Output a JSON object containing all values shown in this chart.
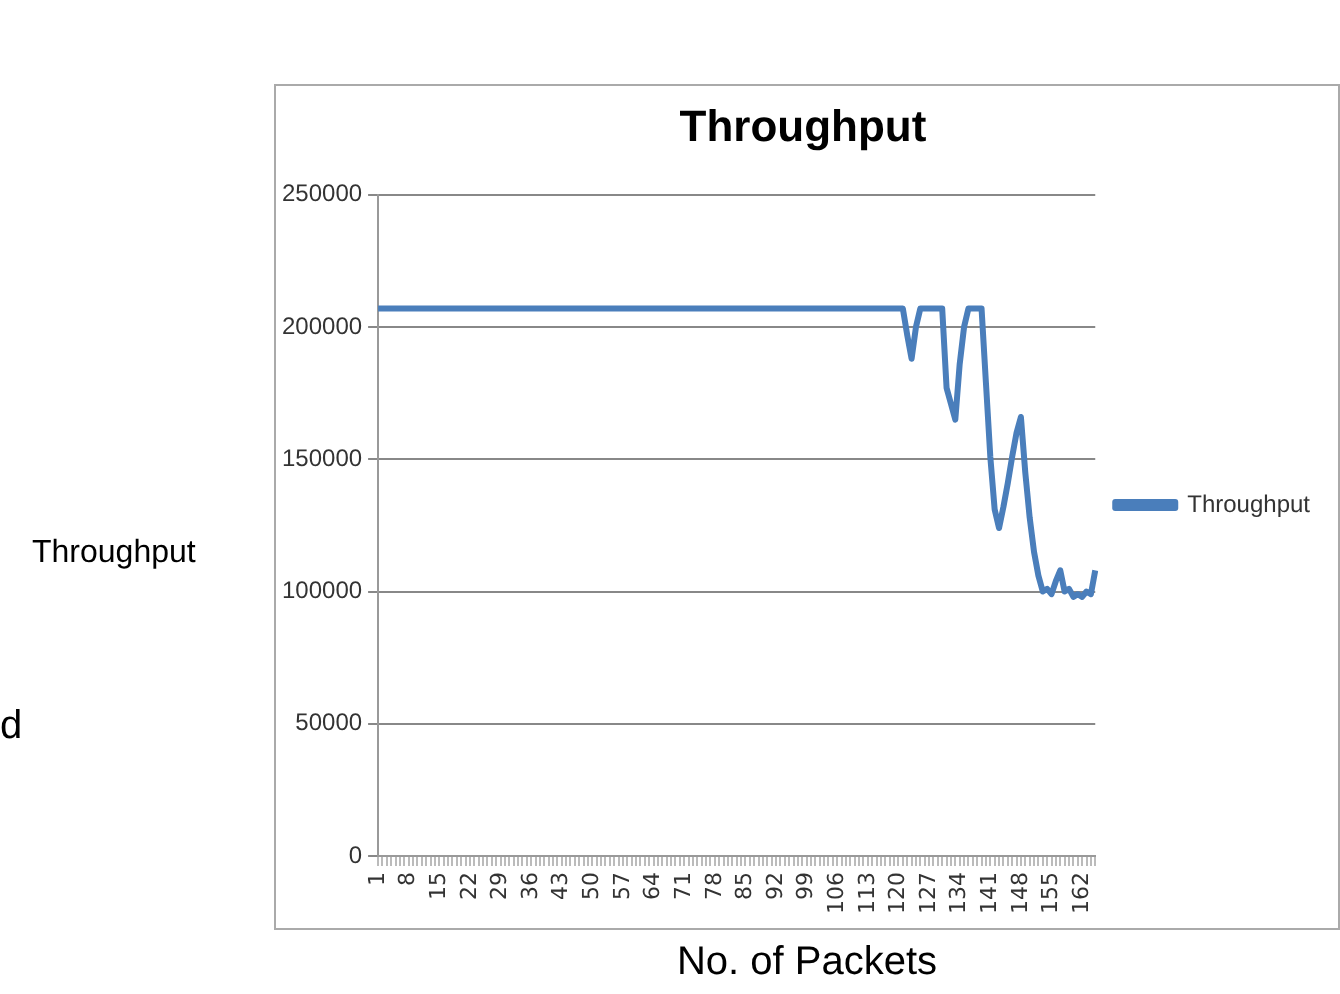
{
  "chart_data": {
    "type": "line",
    "title": "Throughput",
    "xlabel": "No. of Packets",
    "ylabel": "Throughput",
    "annotations": [
      "d"
    ],
    "categories": [
      "1",
      null,
      null,
      null,
      null,
      null,
      null,
      "8",
      null,
      null,
      null,
      null,
      null,
      null,
      "15",
      null,
      null,
      null,
      null,
      null,
      null,
      "22",
      null,
      null,
      null,
      null,
      null,
      null,
      "29",
      null,
      null,
      null,
      null,
      null,
      null,
      "36",
      null,
      null,
      null,
      null,
      null,
      null,
      "43",
      null,
      null,
      null,
      null,
      null,
      null,
      "50",
      null,
      null,
      null,
      null,
      null,
      null,
      "57",
      null,
      null,
      null,
      null,
      null,
      null,
      "64",
      null,
      null,
      null,
      null,
      null,
      null,
      "71",
      null,
      null,
      null,
      null,
      null,
      null,
      "78",
      null,
      null,
      null,
      null,
      null,
      null,
      "85",
      null,
      null,
      null,
      null,
      null,
      null,
      "92",
      null,
      null,
      null,
      null,
      null,
      null,
      "99",
      null,
      null,
      null,
      null,
      null,
      null,
      "106",
      null,
      null,
      null,
      null,
      null,
      null,
      "113",
      null,
      null,
      null,
      null,
      null,
      null,
      "120",
      null,
      null,
      null,
      null,
      null,
      null,
      "127",
      null,
      null,
      null,
      null,
      null,
      null,
      "134",
      null,
      null,
      null,
      null,
      null,
      null,
      "141",
      null,
      null,
      null,
      null,
      null,
      null,
      "148",
      null,
      null,
      null,
      null,
      null,
      null,
      "155",
      null,
      null,
      null,
      null,
      null,
      null,
      "162",
      null,
      null,
      null
    ],
    "series": [
      {
        "name": "Throughput",
        "color": "#4a7ebb",
        "values": [
          207000,
          207000,
          207000,
          207000,
          207000,
          207000,
          207000,
          207000,
          207000,
          207000,
          207000,
          207000,
          207000,
          207000,
          207000,
          207000,
          207000,
          207000,
          207000,
          207000,
          207000,
          207000,
          207000,
          207000,
          207000,
          207000,
          207000,
          207000,
          207000,
          207000,
          207000,
          207000,
          207000,
          207000,
          207000,
          207000,
          207000,
          207000,
          207000,
          207000,
          207000,
          207000,
          207000,
          207000,
          207000,
          207000,
          207000,
          207000,
          207000,
          207000,
          207000,
          207000,
          207000,
          207000,
          207000,
          207000,
          207000,
          207000,
          207000,
          207000,
          207000,
          207000,
          207000,
          207000,
          207000,
          207000,
          207000,
          207000,
          207000,
          207000,
          207000,
          207000,
          207000,
          207000,
          207000,
          207000,
          207000,
          207000,
          207000,
          207000,
          207000,
          207000,
          207000,
          207000,
          207000,
          207000,
          207000,
          207000,
          207000,
          207000,
          207000,
          207000,
          207000,
          207000,
          207000,
          207000,
          207000,
          207000,
          207000,
          207000,
          207000,
          207000,
          207000,
          207000,
          207000,
          207000,
          207000,
          207000,
          207000,
          207000,
          207000,
          207000,
          207000,
          207000,
          207000,
          207000,
          207000,
          207000,
          207000,
          207000,
          207000,
          197000,
          188000,
          200000,
          207000,
          207000,
          207000,
          207000,
          207000,
          207000,
          177000,
          171000,
          165000,
          186000,
          200000,
          207000,
          207000,
          207000,
          207000,
          179000,
          151000,
          131000,
          124000,
          132000,
          141000,
          151000,
          160000,
          166000,
          145000,
          128000,
          115000,
          106000,
          100000,
          101000,
          99000,
          104000,
          108000,
          100000,
          101000,
          98000,
          99000,
          98000,
          100000,
          99000,
          108000
        ]
      }
    ],
    "ylim": [
      0,
      250000
    ],
    "yticks": [
      0,
      50000,
      100000,
      150000,
      200000,
      250000
    ],
    "grid": "y",
    "legend": "right",
    "marker": "none",
    "line_style": "solid"
  }
}
